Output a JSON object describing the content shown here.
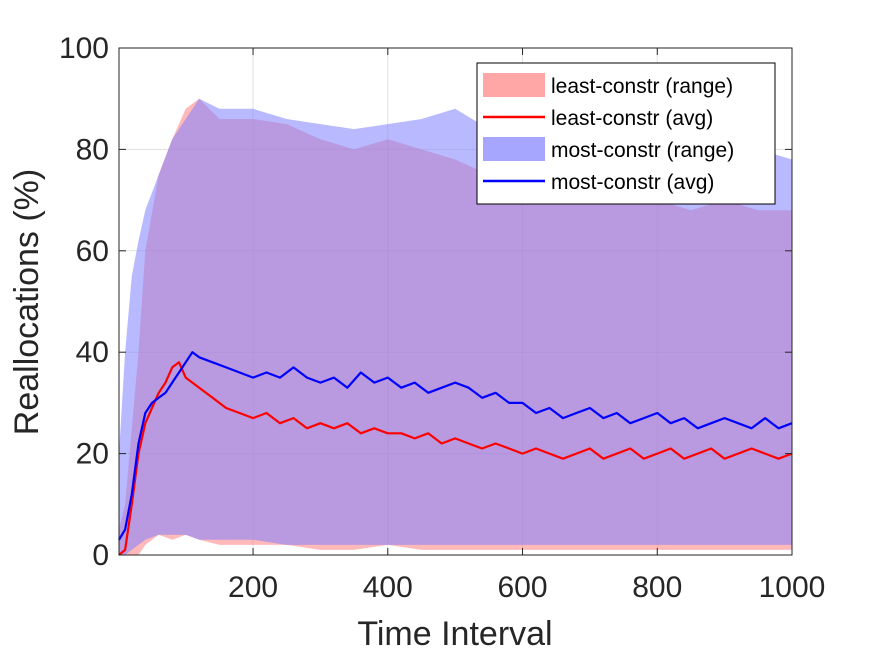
{
  "chart_data": {
    "type": "line",
    "title": "",
    "xlabel": "Time Interval",
    "ylabel": "Reallocations (%)",
    "xlim": [
      1,
      1000
    ],
    "ylim": [
      0,
      100
    ],
    "xticks": [
      "200",
      "400",
      "600",
      "800",
      "1000"
    ],
    "yticks": [
      "0",
      "20",
      "40",
      "60",
      "80",
      "100"
    ],
    "grid": true,
    "legend_position": "top-right",
    "series": [
      {
        "name": "least-constr (range)",
        "kind": "band",
        "color": "#ff8080",
        "x": [
          1,
          10,
          20,
          30,
          40,
          60,
          80,
          100,
          120,
          150,
          200,
          250,
          300,
          350,
          400,
          450,
          500,
          550,
          600,
          650,
          700,
          750,
          800,
          850,
          900,
          950,
          1000
        ],
        "lower": [
          0,
          0,
          0,
          0,
          2,
          4,
          3,
          4,
          3,
          2,
          2,
          2,
          1,
          1,
          2,
          1,
          1,
          1,
          1,
          1,
          1,
          1,
          1,
          1,
          1,
          1,
          1
        ],
        "upper": [
          5,
          10,
          25,
          40,
          60,
          75,
          82,
          88,
          90,
          86,
          86,
          85,
          82,
          80,
          82,
          80,
          78,
          75,
          72,
          70,
          70,
          72,
          70,
          68,
          70,
          68,
          68
        ]
      },
      {
        "name": "least-constr (avg)",
        "kind": "line",
        "color": "#ff0000",
        "x": [
          1,
          10,
          20,
          30,
          40,
          50,
          60,
          70,
          80,
          90,
          100,
          120,
          140,
          160,
          180,
          200,
          220,
          240,
          260,
          280,
          300,
          320,
          340,
          360,
          380,
          400,
          420,
          440,
          460,
          480,
          500,
          520,
          540,
          560,
          580,
          600,
          620,
          640,
          660,
          680,
          700,
          720,
          740,
          760,
          780,
          800,
          820,
          840,
          860,
          880,
          900,
          920,
          940,
          960,
          980,
          1000
        ],
        "values": [
          0,
          1,
          10,
          20,
          26,
          29,
          32,
          34,
          37,
          38,
          35,
          33,
          31,
          29,
          28,
          27,
          28,
          26,
          27,
          25,
          26,
          25,
          26,
          24,
          25,
          24,
          24,
          23,
          24,
          22,
          23,
          22,
          21,
          22,
          21,
          20,
          21,
          20,
          19,
          20,
          21,
          19,
          20,
          21,
          19,
          20,
          21,
          19,
          20,
          21,
          19,
          20,
          21,
          20,
          19,
          20
        ]
      },
      {
        "name": "most-constr (range)",
        "kind": "band",
        "color": "#8080ff",
        "x": [
          1,
          10,
          20,
          30,
          40,
          60,
          80,
          100,
          120,
          150,
          200,
          250,
          300,
          350,
          400,
          450,
          500,
          550,
          600,
          650,
          700,
          750,
          800,
          850,
          900,
          950,
          1000
        ],
        "lower": [
          0,
          0,
          1,
          2,
          3,
          4,
          4,
          4,
          3,
          3,
          3,
          2,
          2,
          2,
          2,
          2,
          2,
          2,
          2,
          2,
          2,
          2,
          2,
          2,
          2,
          2,
          2
        ],
        "upper": [
          20,
          40,
          55,
          62,
          68,
          75,
          82,
          86,
          90,
          88,
          88,
          86,
          85,
          84,
          85,
          86,
          88,
          84,
          80,
          80,
          82,
          80,
          80,
          80,
          82,
          80,
          78
        ]
      },
      {
        "name": "most-constr (avg)",
        "kind": "line",
        "color": "#0000ff",
        "x": [
          1,
          10,
          20,
          30,
          40,
          50,
          60,
          70,
          80,
          90,
          100,
          110,
          120,
          140,
          160,
          180,
          200,
          220,
          240,
          260,
          280,
          300,
          320,
          340,
          360,
          380,
          400,
          420,
          440,
          460,
          480,
          500,
          520,
          540,
          560,
          580,
          600,
          620,
          640,
          660,
          680,
          700,
          720,
          740,
          760,
          780,
          800,
          820,
          840,
          860,
          880,
          900,
          920,
          940,
          960,
          980,
          1000
        ],
        "values": [
          3,
          5,
          12,
          22,
          28,
          30,
          31,
          32,
          34,
          36,
          38,
          40,
          39,
          38,
          37,
          36,
          35,
          36,
          35,
          37,
          35,
          34,
          35,
          33,
          36,
          34,
          35,
          33,
          34,
          32,
          33,
          34,
          33,
          31,
          32,
          30,
          30,
          28,
          29,
          27,
          28,
          29,
          27,
          28,
          26,
          27,
          28,
          26,
          27,
          25,
          26,
          27,
          26,
          25,
          27,
          25,
          26
        ]
      }
    ]
  }
}
